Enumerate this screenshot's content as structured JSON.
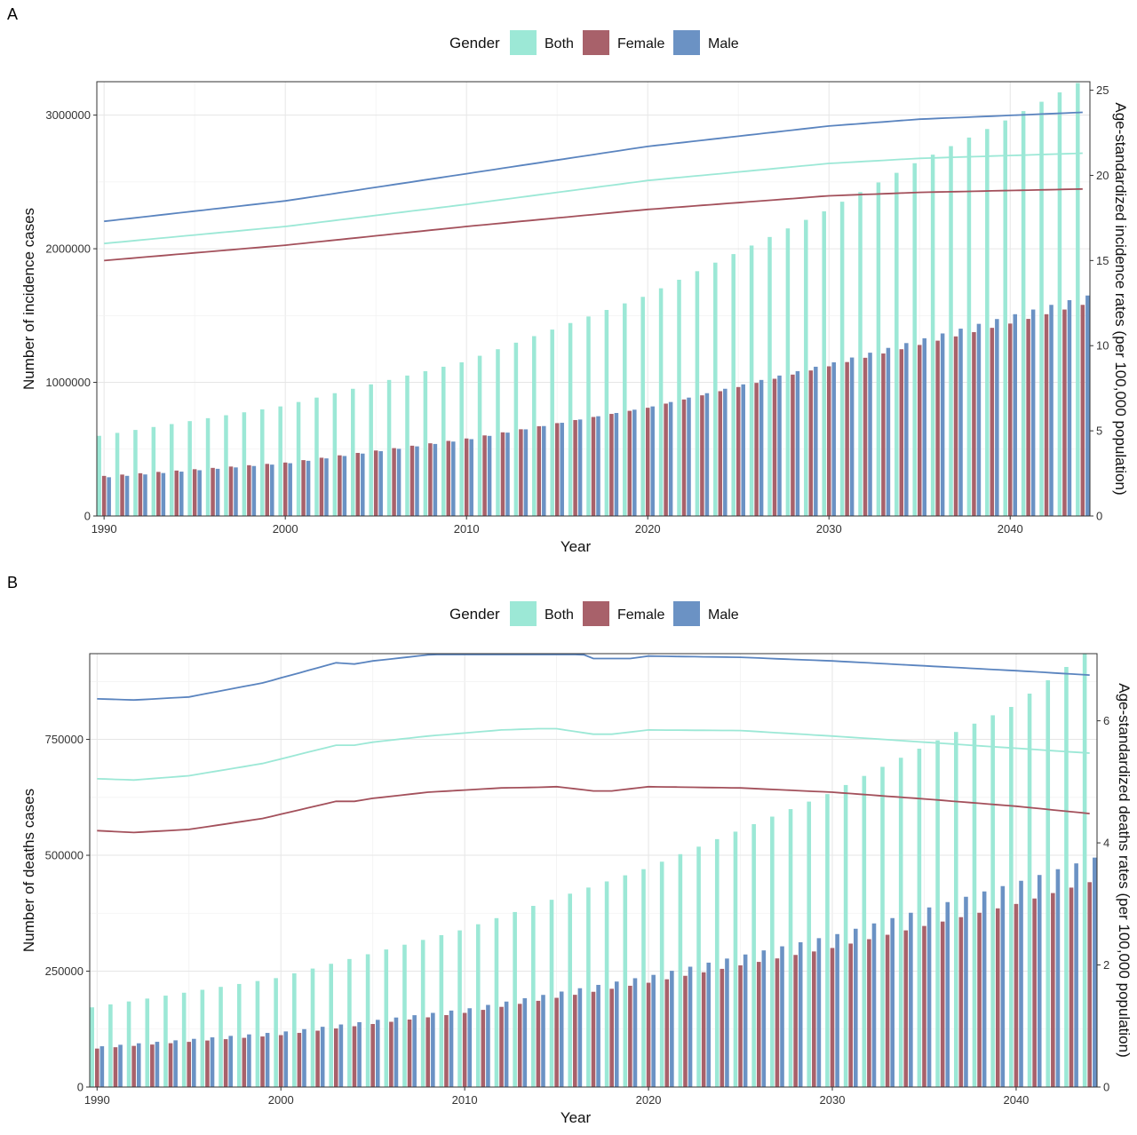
{
  "chart_data": [
    {
      "panel_label": "A",
      "type": "bar+line",
      "xlabel": "Year",
      "ylabel": "Number of incidence cases",
      "y2label": "Age-standardized incidence rates (per 100,000 population)",
      "legend": {
        "title": "Gender",
        "placement": "top",
        "entries": [
          "Both",
          "Female",
          "Male"
        ]
      },
      "grid": true,
      "x_ticks": [
        1990,
        2000,
        2010,
        2020,
        2030,
        2040
      ],
      "xlim": [
        1989.6,
        2044.4
      ],
      "y_ticks": [
        0,
        1000000,
        2000000,
        3000000
      ],
      "y_tick_labels": [
        "0",
        "1000000",
        "2000000",
        "3000000"
      ],
      "ylim": [
        0,
        3250000
      ],
      "y2_ticks": [
        0,
        5,
        10,
        15,
        20,
        25
      ],
      "y2_tick_labels": [
        "0",
        "5",
        "10",
        "15",
        "20",
        "25"
      ],
      "y2lim": [
        0,
        25.5
      ],
      "colors": {
        "Both": "#9ce8d6",
        "Female": "#a8616a",
        "Male": "#6b92c4"
      },
      "line_colors": {
        "Both": "#9ce8d6",
        "Female": "#a3505b",
        "Male": "#5a84bf"
      },
      "bar_start_year": 1990,
      "bar_end_year": 2044,
      "bars": {
        "Both": {
          "1990": 600000,
          "2000": 820000,
          "2010": 1150000,
          "2020": 1640000,
          "2030": 2280000,
          "2035": 2640000,
          "2040": 2960000,
          "2044": 3240000
        },
        "Female": {
          "1990": 300000,
          "2000": 400000,
          "2010": 580000,
          "2020": 810000,
          "2030": 1120000,
          "2040": 1440000,
          "2044": 1580000
        },
        "Male": {
          "1990": 290000,
          "2000": 395000,
          "2010": 575000,
          "2020": 820000,
          "2030": 1150000,
          "2040": 1510000,
          "2044": 1650000
        }
      },
      "rates": {
        "Both": {
          "1990": 16.0,
          "2000": 17.0,
          "2010": 18.3,
          "2020": 19.7,
          "2030": 20.7,
          "2035": 21.0,
          "2044": 21.3
        },
        "Female": {
          "1990": 15.0,
          "2000": 15.9,
          "2010": 17.0,
          "2020": 18.0,
          "2030": 18.8,
          "2035": 19.0,
          "2044": 19.2
        },
        "Male": {
          "1990": 17.3,
          "2000": 18.5,
          "2010": 20.1,
          "2020": 21.7,
          "2030": 22.9,
          "2035": 23.3,
          "2044": 23.7
        }
      }
    },
    {
      "panel_label": "B",
      "type": "bar+line",
      "xlabel": "Year",
      "ylabel": "Number of deaths cases",
      "y2label": "Age-standardized deaths rates (per 100,000 population)",
      "legend": {
        "title": "Gender",
        "placement": "top",
        "entries": [
          "Both",
          "Female",
          "Male"
        ]
      },
      "grid": true,
      "x_ticks": [
        1990,
        2000,
        2010,
        2020,
        2030,
        2040
      ],
      "xlim": [
        1989.6,
        2044.4
      ],
      "y_ticks": [
        0,
        250000,
        500000,
        750000
      ],
      "y_tick_labels": [
        "0",
        "250000",
        "500000",
        "750000"
      ],
      "ylim": [
        0,
        935000
      ],
      "y2_ticks": [
        0,
        2,
        4,
        6
      ],
      "y2_tick_labels": [
        "0",
        "2",
        "4",
        "6"
      ],
      "y2lim": [
        0,
        7.1
      ],
      "colors": {
        "Both": "#9ce8d6",
        "Female": "#a8616a",
        "Male": "#6b92c4"
      },
      "line_colors": {
        "Both": "#9ce8d6",
        "Female": "#a3505b",
        "Male": "#5a84bf"
      },
      "bar_start_year": 1990,
      "bar_end_year": 2044,
      "bars": {
        "Both": {
          "1990": 172000,
          "2000": 235000,
          "2010": 338000,
          "2020": 470000,
          "2030": 632000,
          "2035": 730000,
          "2040": 820000,
          "2044": 935000
        },
        "Female": {
          "1990": 83000,
          "2000": 112000,
          "2010": 160000,
          "2020": 225000,
          "2030": 300000,
          "2040": 395000,
          "2044": 442000
        },
        "Male": {
          "1990": 88000,
          "2000": 120000,
          "2010": 170000,
          "2020": 242000,
          "2030": 330000,
          "2040": 445000,
          "2044": 495000
        }
      },
      "rates": {
        "Both": {
          "1990": 5.05,
          "1992": 5.03,
          "1995": 5.1,
          "1999": 5.3,
          "2003": 5.6,
          "2004": 5.6,
          "2005": 5.65,
          "2008": 5.75,
          "2012": 5.85,
          "2014": 5.87,
          "2015": 5.87,
          "2017": 5.78,
          "2018": 5.78,
          "2020": 5.85,
          "2025": 5.84,
          "2030": 5.75,
          "2035": 5.65,
          "2040": 5.55,
          "2044": 5.47
        },
        "Female": {
          "1990": 4.2,
          "1992": 4.17,
          "1995": 4.22,
          "1999": 4.4,
          "2003": 4.68,
          "2004": 4.68,
          "2005": 4.73,
          "2008": 4.83,
          "2012": 4.9,
          "2014": 4.91,
          "2015": 4.92,
          "2017": 4.85,
          "2018": 4.85,
          "2020": 4.92,
          "2025": 4.9,
          "2030": 4.83,
          "2035": 4.72,
          "2040": 4.6,
          "2044": 4.48
        },
        "Male": {
          "1990": 6.36,
          "1992": 6.34,
          "1995": 6.39,
          "1999": 6.62,
          "2003": 6.95,
          "2004": 6.93,
          "2005": 6.98,
          "2008": 7.08,
          "2012": 7.15,
          "2013": 7.2,
          "2015": 7.2,
          "2016": 7.14,
          "2017": 7.02,
          "2019": 7.02,
          "2020": 7.06,
          "2025": 7.04,
          "2030": 6.98,
          "2035": 6.9,
          "2040": 6.82,
          "2044": 6.75
        }
      }
    }
  ]
}
